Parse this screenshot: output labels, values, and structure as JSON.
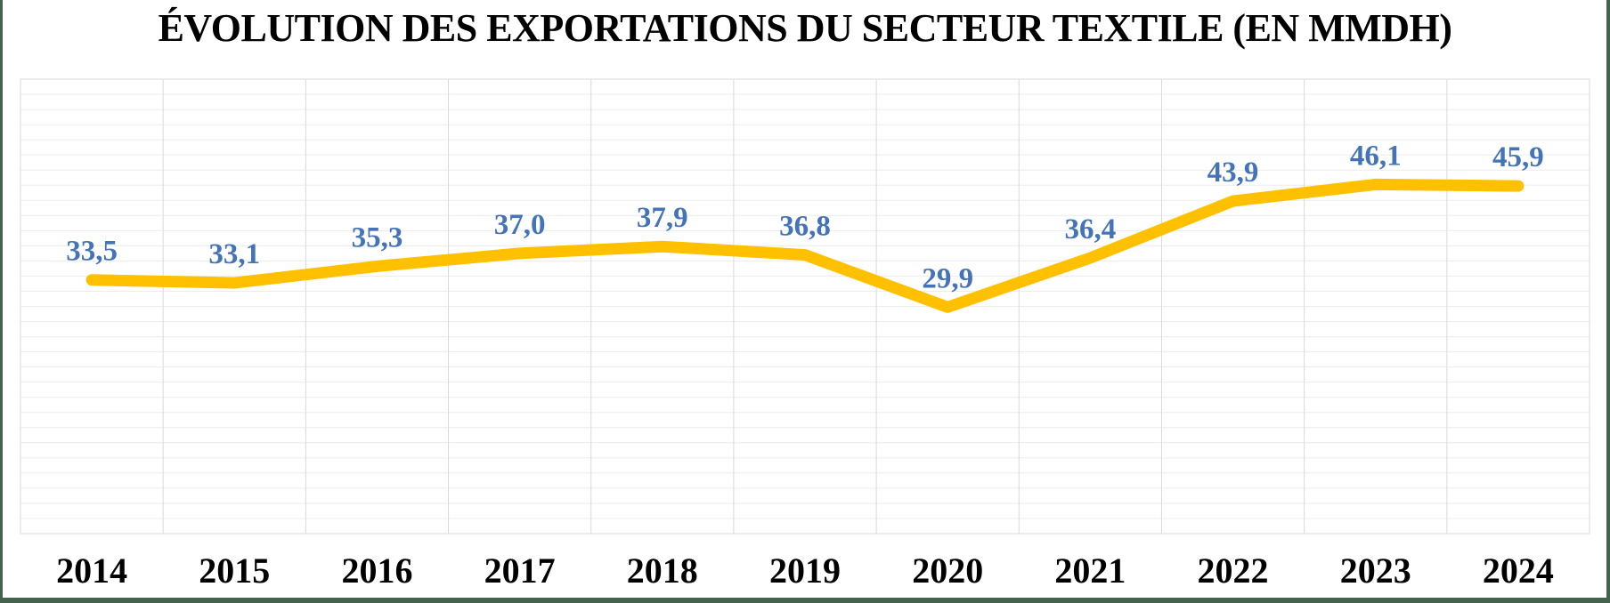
{
  "chart_data": {
    "type": "line",
    "title": "ÉVOLUTION DES EXPORTATIONS DU SECTEUR TEXTILE (EN MMDH)",
    "categories": [
      "2014",
      "2015",
      "2016",
      "2017",
      "2018",
      "2019",
      "2020",
      "2021",
      "2022",
      "2023",
      "2024"
    ],
    "values": [
      33.5,
      33.1,
      35.3,
      37.0,
      37.9,
      36.8,
      29.9,
      36.4,
      43.9,
      46.1,
      45.9
    ],
    "value_labels": [
      "33,5",
      "33,1",
      "35,3",
      "37,0",
      "37,9",
      "36,8",
      "29,9",
      "36,4",
      "43,9",
      "46,1",
      "45,9"
    ],
    "xlabel": "",
    "ylabel": "",
    "ylim": [
      0,
      60
    ],
    "y_gridline_step": 2,
    "grid": "on",
    "legend": "none",
    "colors": {
      "line": "#FFC000",
      "data_label": "#4573B8",
      "axis_text": "#000000",
      "gridline_horizontal": "#ececec",
      "gridline_vertical": "#d9d9d9",
      "frame_border": "#44624E"
    },
    "line_width": 13
  }
}
